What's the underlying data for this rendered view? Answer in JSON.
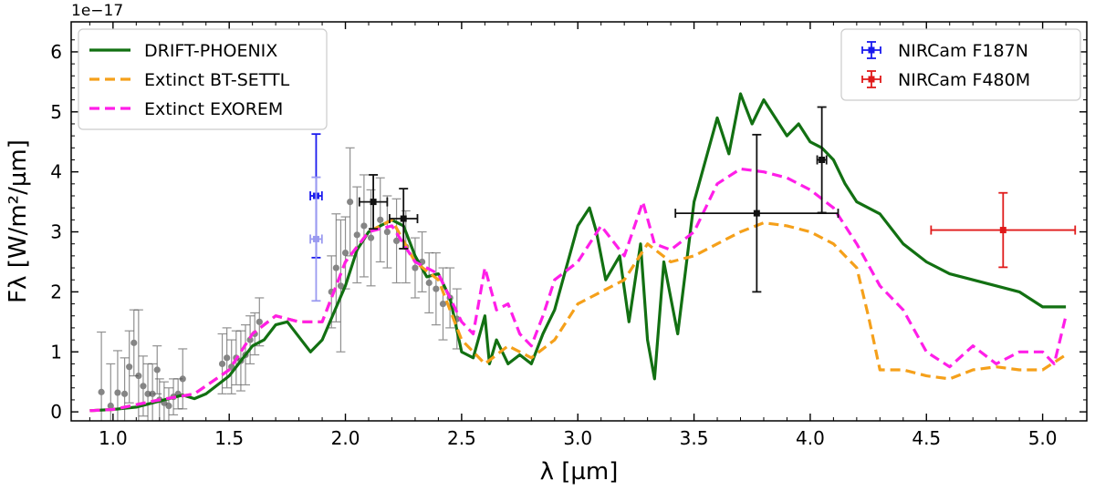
{
  "chart_data": {
    "type": "line",
    "offset_text": "1e−17",
    "xlabel": "λ [µm]",
    "ylabel": "Fλ [W/m²/µm]",
    "xlim": [
      0.82,
      5.19
    ],
    "ylim": [
      -0.15,
      6.5
    ],
    "xticks": [
      {
        "value": 1.0,
        "label": "1.0"
      },
      {
        "value": 1.5,
        "label": "1.5"
      },
      {
        "value": 2.0,
        "label": "2.0"
      },
      {
        "value": 2.5,
        "label": "2.5"
      },
      {
        "value": 3.0,
        "label": "3.0"
      },
      {
        "value": 3.5,
        "label": "3.5"
      },
      {
        "value": 4.0,
        "label": "4.0"
      },
      {
        "value": 4.5,
        "label": "4.5"
      },
      {
        "value": 5.0,
        "label": "5.0"
      }
    ],
    "yticks": [
      {
        "value": 0,
        "label": "0"
      },
      {
        "value": 1,
        "label": "1"
      },
      {
        "value": 2,
        "label": "2"
      },
      {
        "value": 3,
        "label": "3"
      },
      {
        "value": 4,
        "label": "4"
      },
      {
        "value": 5,
        "label": "5"
      },
      {
        "value": 6,
        "label": "6"
      }
    ],
    "series": [
      {
        "name": "DRIFT-PHOENIX",
        "color": "#127012",
        "style": "solid",
        "width": 3.2,
        "x": [
          0.9,
          1.0,
          1.1,
          1.2,
          1.3,
          1.35,
          1.4,
          1.5,
          1.6,
          1.65,
          1.7,
          1.75,
          1.8,
          1.85,
          1.9,
          2.0,
          2.05,
          2.1,
          2.15,
          2.2,
          2.25,
          2.3,
          2.35,
          2.4,
          2.45,
          2.5,
          2.55,
          2.6,
          2.62,
          2.65,
          2.7,
          2.75,
          2.8,
          2.85,
          2.9,
          2.95,
          3.0,
          3.05,
          3.08,
          3.12,
          3.18,
          3.22,
          3.27,
          3.3,
          3.33,
          3.37,
          3.43,
          3.5,
          3.55,
          3.6,
          3.65,
          3.7,
          3.75,
          3.8,
          3.85,
          3.9,
          3.95,
          4.0,
          4.05,
          4.1,
          4.15,
          4.2,
          4.3,
          4.4,
          4.5,
          4.6,
          4.7,
          4.8,
          4.9,
          5.0,
          5.05,
          5.1
        ],
        "y": [
          0.02,
          0.04,
          0.08,
          0.18,
          0.28,
          0.22,
          0.3,
          0.6,
          1.1,
          1.2,
          1.45,
          1.5,
          1.25,
          1.0,
          1.2,
          2.1,
          2.7,
          3.0,
          3.1,
          3.2,
          3.1,
          2.6,
          2.25,
          2.3,
          1.9,
          1.0,
          0.9,
          1.6,
          0.8,
          1.2,
          0.8,
          0.95,
          0.8,
          1.3,
          1.7,
          2.4,
          3.1,
          3.4,
          3.0,
          2.2,
          2.6,
          1.5,
          2.8,
          1.2,
          0.55,
          2.5,
          1.3,
          3.5,
          4.2,
          4.9,
          4.3,
          5.3,
          4.8,
          5.2,
          4.9,
          4.6,
          4.8,
          4.5,
          4.4,
          4.2,
          3.8,
          3.5,
          3.3,
          2.8,
          2.5,
          2.3,
          2.2,
          2.1,
          2.0,
          1.75,
          1.75,
          1.75
        ]
      },
      {
        "name": "Extinct BT-SETTL",
        "color": "#f5a01a",
        "style": "dashed",
        "width": 3.2,
        "x": [
          0.9,
          1.0,
          1.2,
          1.35,
          1.5,
          1.6,
          1.7,
          1.8,
          1.9,
          2.0,
          2.1,
          2.2,
          2.3,
          2.4,
          2.5,
          2.6,
          2.7,
          2.8,
          2.9,
          3.0,
          3.1,
          3.2,
          3.3,
          3.4,
          3.5,
          3.6,
          3.7,
          3.8,
          3.9,
          4.0,
          4.1,
          4.15,
          4.2,
          4.25,
          4.3,
          4.4,
          4.5,
          4.6,
          4.7,
          4.8,
          4.9,
          5.0,
          5.1
        ],
        "y": [
          0.02,
          0.04,
          0.2,
          0.3,
          0.7,
          1.3,
          1.6,
          1.5,
          1.5,
          2.5,
          3.0,
          3.2,
          2.5,
          2.2,
          1.2,
          0.8,
          1.1,
          0.9,
          1.2,
          1.8,
          2.0,
          2.2,
          2.8,
          2.5,
          2.6,
          2.8,
          3.0,
          3.15,
          3.1,
          3.0,
          2.8,
          2.6,
          2.4,
          1.6,
          0.7,
          0.7,
          0.6,
          0.55,
          0.7,
          0.75,
          0.7,
          0.7,
          0.95
        ]
      },
      {
        "name": "Extinct EXOREM",
        "color": "#ff1ee8",
        "style": "dashed",
        "width": 3.2,
        "x": [
          0.9,
          1.0,
          1.2,
          1.35,
          1.5,
          1.6,
          1.7,
          1.8,
          1.9,
          2.0,
          2.1,
          2.2,
          2.3,
          2.4,
          2.5,
          2.55,
          2.6,
          2.65,
          2.7,
          2.75,
          2.8,
          2.85,
          2.9,
          3.0,
          3.1,
          3.2,
          3.28,
          3.33,
          3.4,
          3.5,
          3.6,
          3.7,
          3.8,
          3.9,
          4.0,
          4.1,
          4.2,
          4.3,
          4.4,
          4.5,
          4.6,
          4.7,
          4.8,
          4.9,
          5.0,
          5.05,
          5.1
        ],
        "y": [
          0.02,
          0.04,
          0.2,
          0.3,
          0.7,
          1.3,
          1.6,
          1.5,
          1.5,
          2.5,
          3.0,
          3.1,
          2.5,
          2.3,
          1.5,
          1.3,
          2.4,
          1.7,
          1.8,
          1.3,
          1.1,
          1.6,
          2.2,
          2.5,
          3.1,
          2.6,
          3.5,
          2.8,
          2.7,
          3.0,
          3.8,
          4.05,
          4.0,
          3.9,
          3.7,
          3.4,
          2.8,
          2.1,
          1.7,
          1.0,
          0.75,
          1.1,
          0.8,
          1.0,
          1.0,
          0.8,
          1.6
        ]
      }
    ],
    "errorbars": [
      {
        "name": "NIRCam F187N",
        "color": "#1a1aee",
        "x": 1.874,
        "y": 3.6,
        "yerr": 1.03,
        "xerr": 0.025,
        "marker": "square"
      },
      {
        "name": "NIRCam F187N (faint)",
        "color": "#9a9af0",
        "x": 1.874,
        "y": 2.88,
        "yerr": 1.03,
        "xerr": 0.025,
        "marker": "square",
        "legend": false
      },
      {
        "name": "NIRCam F480M",
        "color": "#e01a1a",
        "x": 4.83,
        "y": 3.03,
        "yerr": 0.62,
        "xerr": 0.31,
        "marker": "square"
      },
      {
        "name": "phot-2.1",
        "color": "#111111",
        "x": 2.12,
        "y": 3.5,
        "yerr": 0.45,
        "xerr": 0.06,
        "marker": "square",
        "legend": false
      },
      {
        "name": "phot-2.25",
        "color": "#111111",
        "x": 2.25,
        "y": 3.22,
        "yerr": 0.5,
        "xerr": 0.06,
        "marker": "square",
        "legend": false
      },
      {
        "name": "phot-3.77",
        "color": "#111111",
        "x": 3.77,
        "y": 3.31,
        "yerr": 1.31,
        "xerr": 0.35,
        "marker": "square",
        "legend": false
      },
      {
        "name": "phot-4.05",
        "color": "#111111",
        "x": 4.05,
        "y": 4.2,
        "yerr": 0.88,
        "xerr": 0.02,
        "marker": "square",
        "legend": false
      }
    ],
    "spectrum_points": {
      "color": "#555555",
      "points": [
        [
          0.95,
          0.33,
          1.0
        ],
        [
          0.99,
          0.1,
          0.7
        ],
        [
          1.02,
          0.32,
          0.7
        ],
        [
          1.05,
          0.3,
          0.6
        ],
        [
          1.07,
          0.75,
          0.6
        ],
        [
          1.09,
          1.15,
          0.55
        ],
        [
          1.11,
          0.6,
          1.1
        ],
        [
          1.13,
          0.43,
          0.5
        ],
        [
          1.15,
          0.3,
          0.5
        ],
        [
          1.17,
          0.3,
          0.5
        ],
        [
          1.19,
          0.7,
          0.4
        ],
        [
          1.2,
          0.2,
          0.35
        ],
        [
          1.22,
          0.15,
          0.35
        ],
        [
          1.24,
          0.1,
          0.3
        ],
        [
          1.26,
          0.25,
          0.3
        ],
        [
          1.28,
          0.3,
          0.25
        ],
        [
          1.3,
          0.55,
          0.5
        ],
        [
          1.47,
          0.8,
          0.5
        ],
        [
          1.49,
          0.9,
          0.5
        ],
        [
          1.51,
          0.75,
          0.45
        ],
        [
          1.53,
          0.9,
          0.45
        ],
        [
          1.55,
          0.85,
          0.5
        ],
        [
          1.57,
          0.95,
          0.5
        ],
        [
          1.59,
          1.2,
          0.4
        ],
        [
          1.61,
          1.3,
          0.35
        ],
        [
          1.63,
          1.5,
          0.4
        ],
        [
          1.94,
          2.0,
          0.6
        ],
        [
          1.96,
          2.4,
          0.9
        ],
        [
          1.98,
          2.1,
          1.1
        ],
        [
          2.0,
          2.65,
          0.6
        ],
        [
          2.02,
          3.5,
          0.9
        ],
        [
          2.05,
          2.95,
          0.8
        ],
        [
          2.08,
          3.1,
          0.85
        ],
        [
          2.11,
          2.9,
          0.8
        ],
        [
          2.15,
          3.2,
          0.7
        ],
        [
          2.18,
          3.0,
          0.6
        ],
        [
          2.22,
          2.85,
          0.7
        ],
        [
          2.26,
          2.75,
          0.6
        ],
        [
          2.3,
          2.4,
          0.5
        ],
        [
          2.33,
          2.5,
          0.5
        ],
        [
          2.36,
          2.15,
          0.5
        ],
        [
          2.39,
          2.05,
          0.6
        ],
        [
          2.42,
          1.8,
          0.6
        ],
        [
          2.45,
          1.9,
          0.5
        ],
        [
          2.48,
          1.55,
          0.5
        ]
      ]
    },
    "legend_left": [
      {
        "label": "DRIFT-PHOENIX",
        "color": "#127012",
        "style": "solid"
      },
      {
        "label": "Extinct BT-SETTL",
        "color": "#f5a01a",
        "style": "dashed"
      },
      {
        "label": "Extinct EXOREM",
        "color": "#ff1ee8",
        "style": "dashed"
      }
    ],
    "legend_right": [
      {
        "label": "NIRCam F187N",
        "color": "#1a1aee"
      },
      {
        "label": "NIRCam F480M",
        "color": "#e01a1a"
      }
    ],
    "legend_positions": [
      "upper-left",
      "upper-right"
    ]
  }
}
